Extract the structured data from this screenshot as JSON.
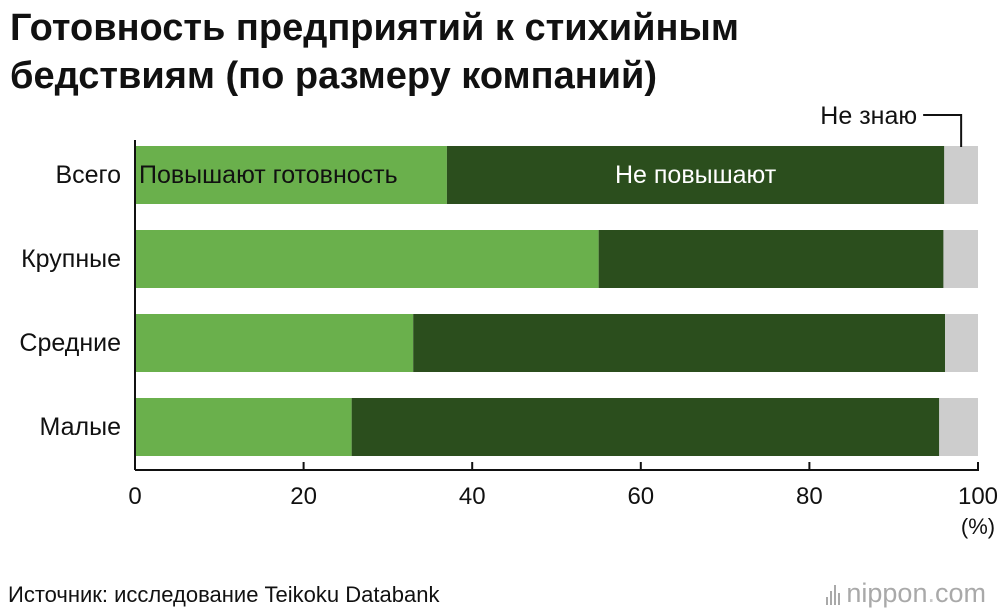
{
  "title_line1": "Готовность предприятий к стихийным",
  "title_line2": "бедствиям (по размеру компаний)",
  "source": "Источник: исследование Teikoku Databank",
  "logo": {
    "name": "nippon",
    "dot": ".",
    "tld": "com"
  },
  "chart_data": {
    "type": "bar",
    "orientation": "horizontal",
    "stacked": true,
    "categories": [
      "Всего",
      "Крупные",
      "Средние",
      "Малые"
    ],
    "series": [
      {
        "name": "Повышают готовность",
        "values": [
          37.0,
          55.0,
          33.0,
          25.7
        ],
        "color": "#6ab04c"
      },
      {
        "name": "Не повышают",
        "values": [
          59.0,
          40.9,
          63.1,
          69.7
        ],
        "color": "#2b4e1d"
      },
      {
        "name": "Не знаю",
        "values": [
          4.0,
          4.1,
          3.9,
          4.6
        ],
        "color": "#cdcdcd"
      }
    ],
    "xlim": [
      0,
      100
    ],
    "xticks": [
      "0",
      "20",
      "40",
      "60",
      "80",
      "100"
    ],
    "x_unit": "(%)",
    "grid": false
  }
}
